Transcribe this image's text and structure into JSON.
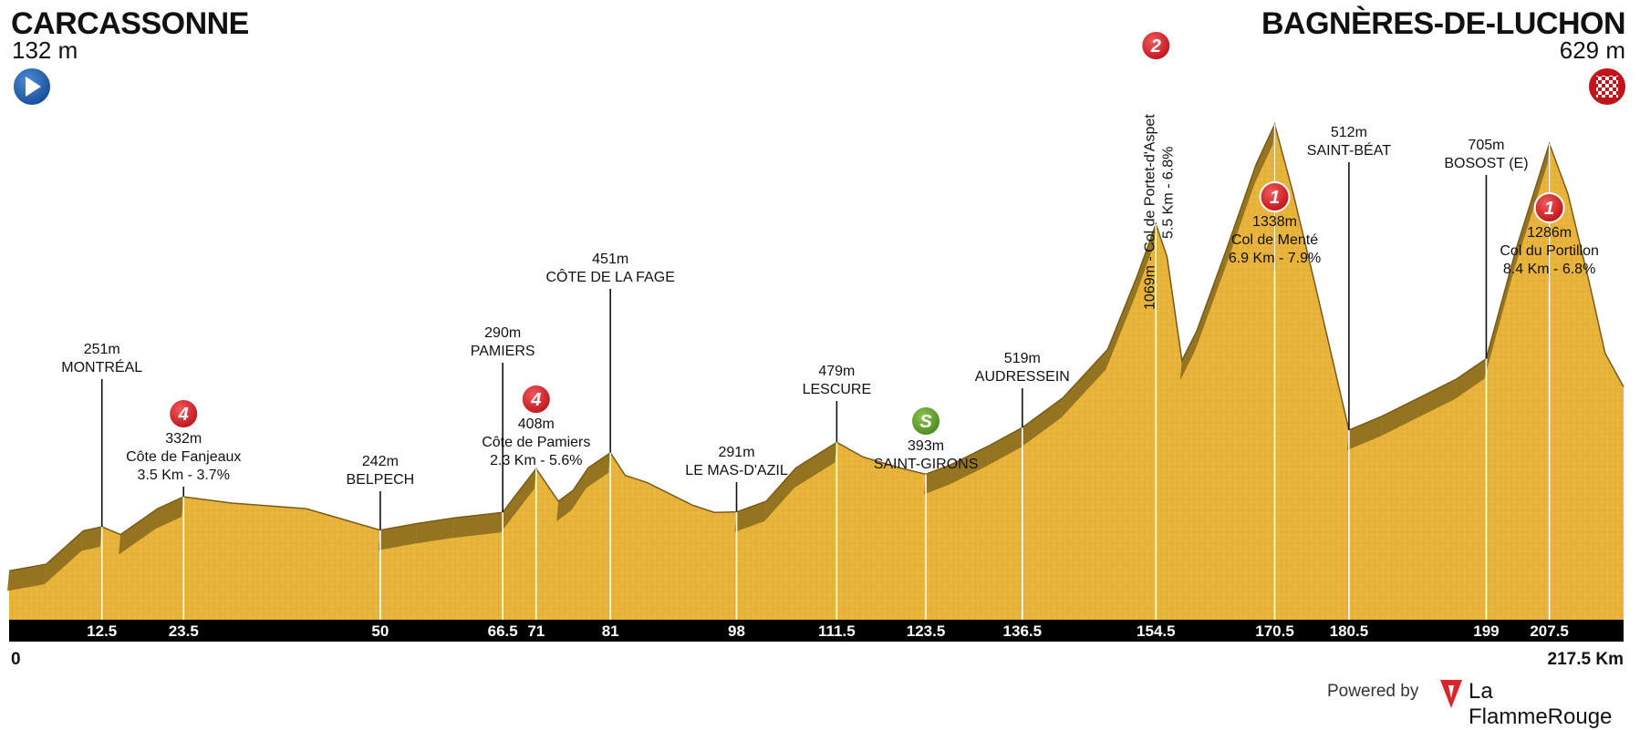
{
  "start": {
    "name": "CARCASSONNE",
    "altitude": "132 m"
  },
  "finish": {
    "name": "BAGNÈRES-DE-LUCHON",
    "altitude": "629 m"
  },
  "footer": {
    "powered_by": "Powered by",
    "brand": "La FlammeRouge"
  },
  "colors": {
    "terrain": "#E8B33A",
    "slope_shade": "#8C6D1F",
    "axis_bar": "#000000",
    "climb_badge": "#D9252B",
    "sprint_badge": "#5E9D2A",
    "start_icon": "#1F5FB0"
  },
  "icons": {
    "start": "play-icon",
    "finish": "checkered-flag-icon",
    "brand": "flamme-rouge-icon"
  },
  "chart_data": {
    "type": "area",
    "title": "",
    "xlabel": "",
    "ylabel": "",
    "x_unit": "Km",
    "xlim": [
      0,
      217.5
    ],
    "ylim": [
      0,
      1600
    ],
    "axis_start_label": "0",
    "axis_end_label": "217.5 Km",
    "x_ticks": [
      "12.5",
      "23.5",
      "50",
      "66.5",
      "71",
      "81",
      "98",
      "111.5",
      "123.5",
      "136.5",
      "154.5",
      "170.5",
      "180.5",
      "199",
      "207.5"
    ],
    "profile": {
      "x": [
        0,
        5,
        10,
        12.5,
        15,
        20,
        23.5,
        30,
        40,
        50,
        55,
        60,
        66.5,
        68,
        71,
        74,
        76,
        78,
        81,
        83,
        86,
        88,
        92,
        95,
        98,
        102,
        106,
        111.5,
        115,
        120,
        123.5,
        127,
        132,
        136.5,
        142,
        148,
        152,
        154.5,
        156,
        158,
        160,
        164,
        168,
        170.5,
        173,
        176,
        180.5,
        185,
        190,
        195,
        199,
        203,
        207.5,
        210,
        213,
        215,
        217.5
      ],
      "y": [
        132,
        150,
        240,
        251,
        230,
        300,
        332,
        315,
        300,
        242,
        260,
        275,
        290,
        330,
        408,
        320,
        350,
        410,
        451,
        390,
        370,
        350,
        310,
        290,
        291,
        320,
        410,
        479,
        440,
        410,
        393,
        420,
        470,
        519,
        600,
        730,
        930,
        1069,
        980,
        700,
        780,
        1000,
        1230,
        1338,
        1150,
        900,
        512,
        550,
        600,
        650,
        705,
        1000,
        1286,
        1150,
        900,
        720,
        629
      ]
    },
    "locations": [
      {
        "km": 12.5,
        "altitude": 251,
        "alt_label": "251m",
        "name": "MONTRÉAL"
      },
      {
        "km": 23.5,
        "altitude": 332,
        "alt_label": "332m",
        "name": "Côte de Fanjeaux",
        "detail": "3.5 Km - 3.7%",
        "category": "4"
      },
      {
        "km": 50,
        "altitude": 242,
        "alt_label": "242m",
        "name": "BELPECH"
      },
      {
        "km": 66.5,
        "altitude": 290,
        "alt_label": "290m",
        "name": "PAMIERS"
      },
      {
        "km": 71,
        "altitude": 408,
        "alt_label": "408m",
        "name": "Côte de Pamiers",
        "detail": "2.3 Km - 5.6%",
        "category": "4"
      },
      {
        "km": 81,
        "altitude": 451,
        "alt_label": "451m",
        "name": "CÔTE DE LA FAGE"
      },
      {
        "km": 98,
        "altitude": 291,
        "alt_label": "291m",
        "name": "LE MAS-D'AZIL"
      },
      {
        "km": 111.5,
        "altitude": 479,
        "alt_label": "479m",
        "name": "LESCURE"
      },
      {
        "km": 123.5,
        "altitude": 393,
        "alt_label": "393m",
        "name": "SAINT-GIRONS",
        "category": "S"
      },
      {
        "km": 136.5,
        "altitude": 519,
        "alt_label": "519m",
        "name": "AUDRESSEIN"
      },
      {
        "km": 154.5,
        "altitude": 1069,
        "vertical_label": "1069m - Col de Portet-d'Aspet",
        "vertical_detail": "5.5 Km - 6.8%",
        "category": "2"
      },
      {
        "km": 170.5,
        "altitude": 1338,
        "alt_label": "1338m",
        "name": "Col de Menté",
        "detail": "6.9 Km - 7.9%",
        "category": "1"
      },
      {
        "km": 180.5,
        "altitude": 512,
        "alt_label": "512m",
        "name": "SAINT-BÉAT"
      },
      {
        "km": 199,
        "altitude": 705,
        "alt_label": "705m",
        "name": "BOSOST (E)"
      },
      {
        "km": 207.5,
        "altitude": 1286,
        "alt_label": "1286m",
        "name": "Col du Portillon",
        "detail": "8.4 Km - 6.8%",
        "category": "1"
      }
    ],
    "grid": false,
    "legend": "none"
  }
}
